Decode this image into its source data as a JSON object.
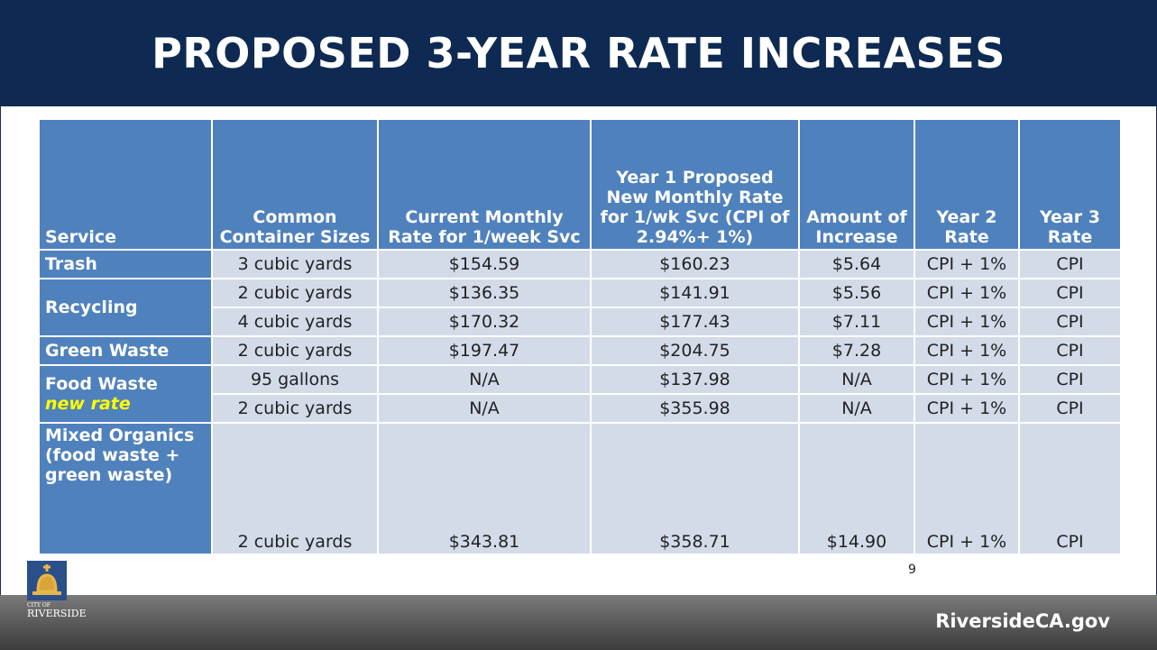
{
  "header": {
    "title": "PROPOSED 3-YEAR RATE INCREASES"
  },
  "table": {
    "headers": [
      "Service",
      "Common Container Sizes",
      "Current Monthly Rate for 1/week Svc",
      "Year 1 Proposed New Monthly Rate for 1/wk Svc (CPI of 2.94%+ 1%)",
      "Amount of Increase",
      "Year 2 Rate",
      "Year 3 Rate"
    ],
    "groups": [
      {
        "service": "Trash",
        "rows": [
          [
            "3 cubic yards",
            "$154.59",
            "$160.23",
            "$5.64",
            "CPI + 1%",
            "CPI"
          ]
        ]
      },
      {
        "service": "Recycling",
        "rows": [
          [
            "2 cubic yards",
            "$136.35",
            "$141.91",
            "$5.56",
            "CPI + 1%",
            "CPI"
          ],
          [
            "4 cubic yards",
            "$170.32",
            "$177.43",
            "$7.11",
            "CPI + 1%",
            "CPI"
          ]
        ]
      },
      {
        "service": "Green Waste",
        "rows": [
          [
            "2 cubic yards",
            "$197.47",
            "$204.75",
            "$7.28",
            "CPI + 1%",
            "CPI"
          ]
        ]
      },
      {
        "service": "Food Waste",
        "note": "new rate",
        "rows": [
          [
            "95 gallons",
            "N/A",
            "$137.98",
            "N/A",
            "CPI + 1%",
            "CPI"
          ],
          [
            "2 cubic yards",
            "N/A",
            "$355.98",
            "N/A",
            "CPI + 1%",
            "CPI"
          ]
        ]
      },
      {
        "service": "Mixed Organics (food waste + green waste)",
        "rows": [
          [
            "2 cubic yards",
            "$343.81",
            "$358.71",
            "$14.90",
            "CPI + 1%",
            "CPI"
          ]
        ]
      }
    ]
  },
  "footer": {
    "page_number": "9",
    "logo_top": "CITY OF",
    "logo_bottom": "RIVERSIDE",
    "website": "RiversideCA.gov"
  }
}
